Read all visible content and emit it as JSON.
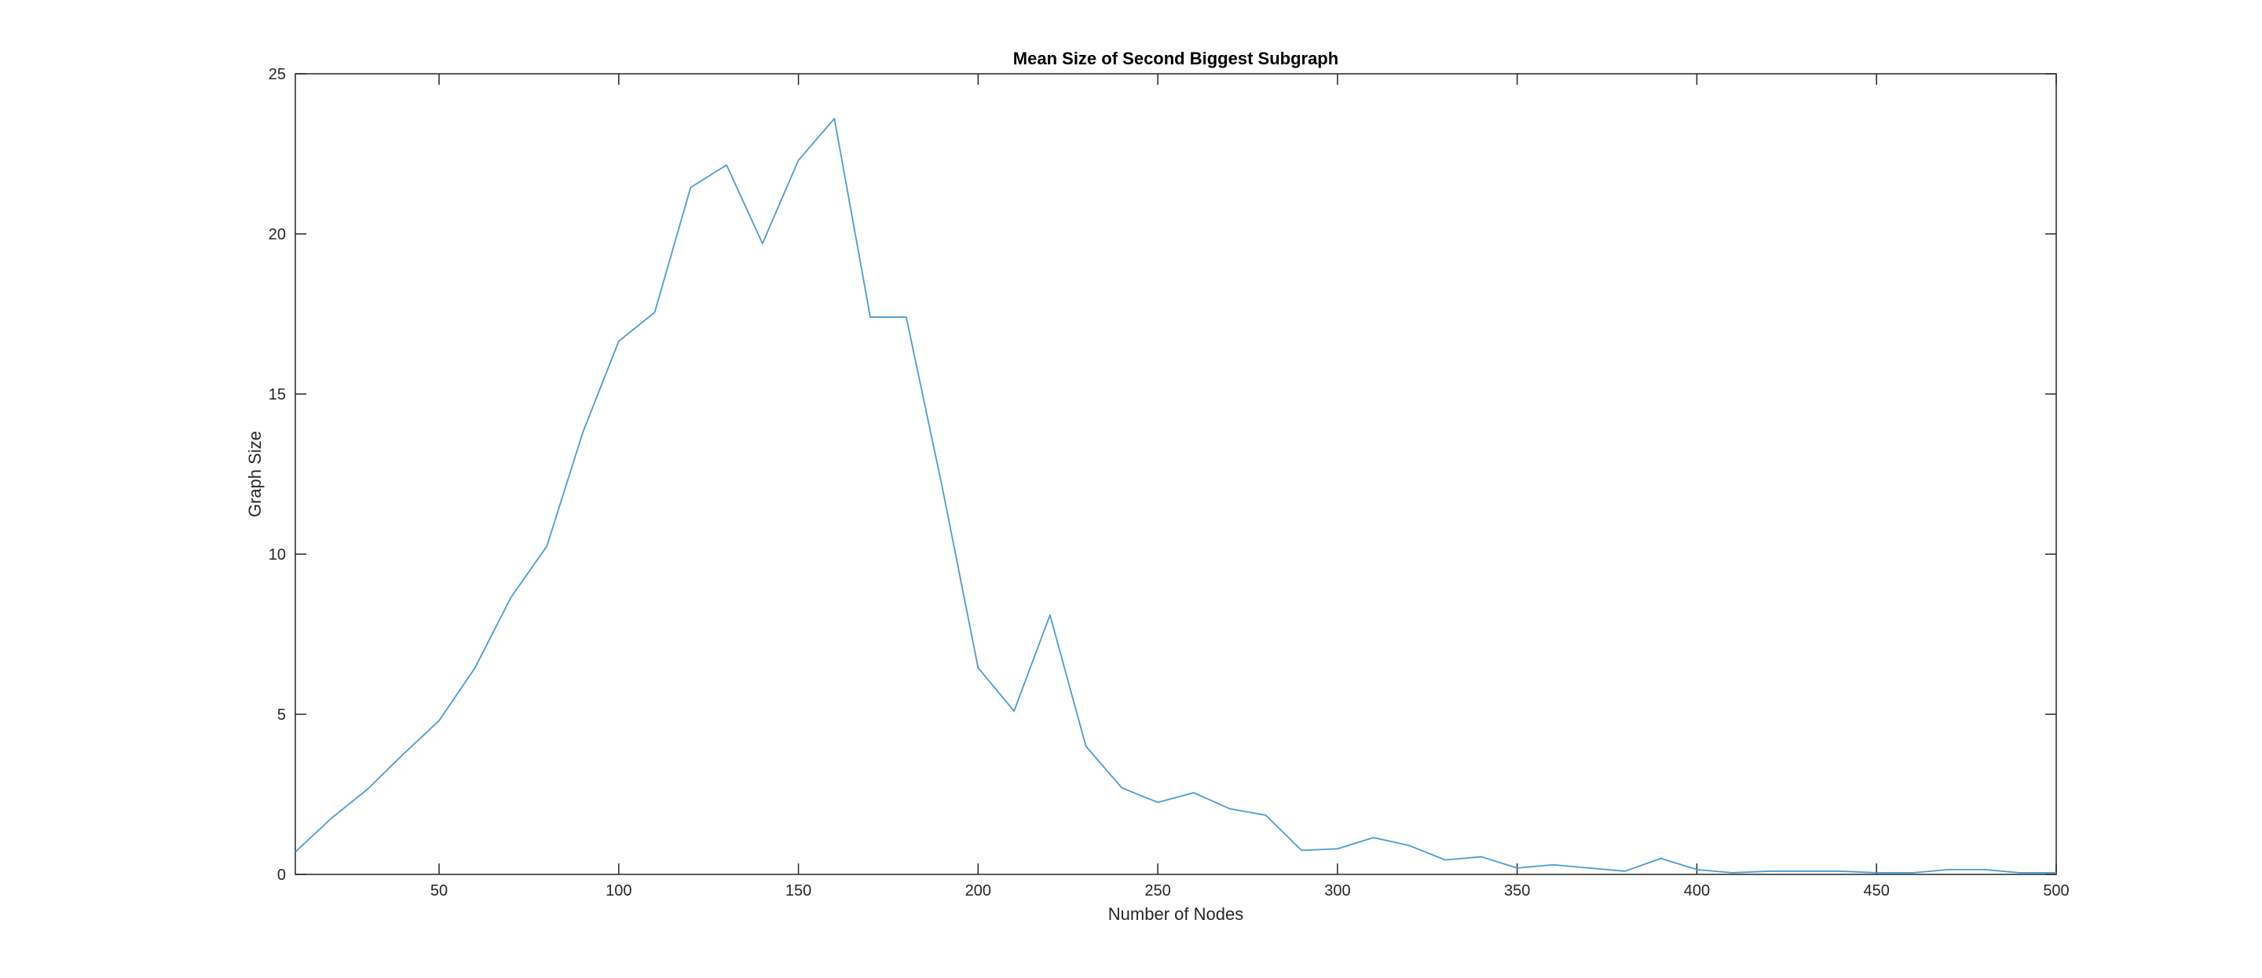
{
  "chart_data": {
    "type": "line",
    "title": "Mean Size of Second Biggest Subgraph",
    "xlabel": "Number of Nodes",
    "ylabel": "Graph Size",
    "xlim": [
      10,
      500
    ],
    "ylim": [
      0,
      25
    ],
    "xticks": [
      50,
      100,
      150,
      200,
      250,
      300,
      350,
      400,
      450,
      500
    ],
    "yticks": [
      0,
      5,
      10,
      15,
      20,
      25
    ],
    "grid": false,
    "legend": "none",
    "line_color": "#4a9bd6",
    "series": [
      {
        "x": [
          10,
          20,
          30,
          40,
          50,
          60,
          70,
          80,
          90,
          100,
          110,
          120,
          130,
          140,
          150,
          160,
          170,
          180,
          190,
          200,
          210,
          220,
          230,
          240,
          250,
          260,
          270,
          280,
          290,
          300,
          310,
          320,
          330,
          340,
          350,
          360,
          370,
          380,
          390,
          400,
          410,
          420,
          430,
          440,
          450,
          460,
          470,
          480,
          490,
          500
        ],
        "values": [
          0.7,
          1.75,
          2.65,
          3.75,
          4.8,
          6.45,
          8.65,
          10.25,
          13.8,
          16.65,
          17.55,
          21.45,
          22.15,
          19.7,
          22.3,
          23.6,
          17.4,
          17.4,
          12.1,
          6.45,
          5.1,
          8.1,
          4.0,
          2.7,
          2.25,
          2.55,
          2.05,
          1.85,
          0.75,
          0.8,
          1.15,
          0.9,
          0.45,
          0.55,
          0.2,
          0.3,
          0.2,
          0.1,
          0.5,
          0.15,
          0.05,
          0.1,
          0.1,
          0.1,
          0.05,
          0.05,
          0.15,
          0.15,
          0.05,
          0.05
        ]
      }
    ]
  }
}
